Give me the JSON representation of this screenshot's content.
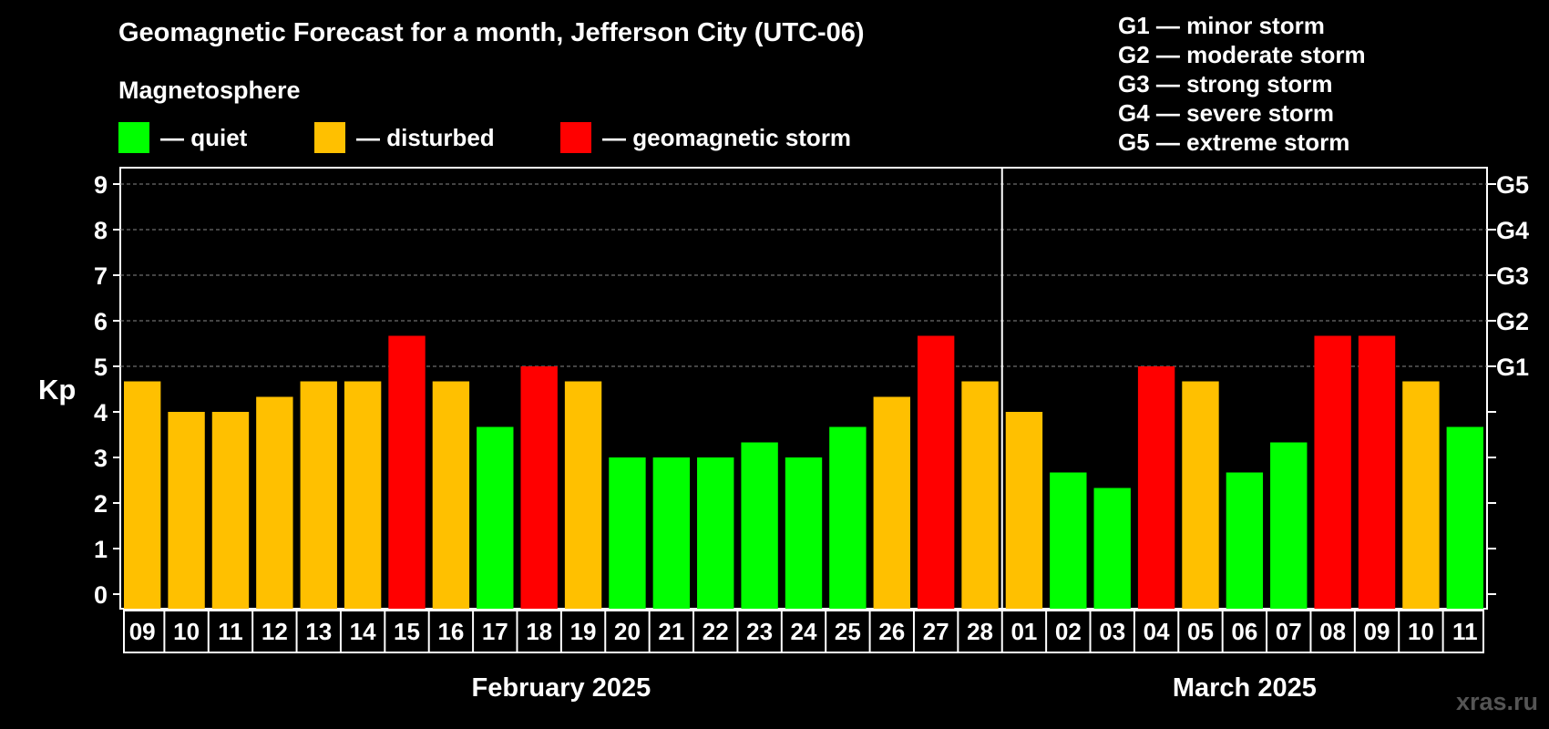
{
  "title": "Geomagnetic Forecast for a month, Jefferson City (UTC-06)",
  "subtitle": "Magnetosphere",
  "legend": [
    {
      "label": "— quiet",
      "color": "#00ff00"
    },
    {
      "label": "— disturbed",
      "color": "#ffc000"
    },
    {
      "label": "— geomagnetic storm",
      "color": "#ff0000"
    }
  ],
  "storm_levels": [
    "G1 — minor storm",
    "G2 — moderate storm",
    "G3 — strong storm",
    "G4 — severe storm",
    "G5 — extreme storm"
  ],
  "ylabel": "Kp",
  "watermark": "xras.ru",
  "chart_data": {
    "type": "bar",
    "ylim": [
      0,
      9
    ],
    "yticks": [
      "0",
      "1",
      "2",
      "3",
      "4",
      "5",
      "6",
      "7",
      "8",
      "9"
    ],
    "right_ticks": [
      {
        "value": 5,
        "label": "G1"
      },
      {
        "value": 6,
        "label": "G2"
      },
      {
        "value": 7,
        "label": "G3"
      },
      {
        "value": 8,
        "label": "G4"
      },
      {
        "value": 9,
        "label": "G5"
      }
    ],
    "grid": "horizontal dashed at 5, 6, 7, 8, 9",
    "groups": [
      {
        "label": "February 2025",
        "start": 0,
        "count": 20
      },
      {
        "label": "March 2025",
        "start": 20,
        "count": 11
      }
    ],
    "categories": [
      "09",
      "10",
      "11",
      "12",
      "13",
      "14",
      "15",
      "16",
      "17",
      "18",
      "19",
      "20",
      "21",
      "22",
      "23",
      "24",
      "25",
      "26",
      "27",
      "28",
      "01",
      "02",
      "03",
      "04",
      "05",
      "06",
      "07",
      "08",
      "09",
      "10",
      "11"
    ],
    "values": [
      4.67,
      4.0,
      4.0,
      4.33,
      4.67,
      4.67,
      5.67,
      4.67,
      3.67,
      5.0,
      4.67,
      3.0,
      3.0,
      3.0,
      3.33,
      3.0,
      3.67,
      4.33,
      5.67,
      4.67,
      4.0,
      2.67,
      2.33,
      5.0,
      4.67,
      2.67,
      3.33,
      5.67,
      5.67,
      4.67,
      3.67
    ],
    "status": [
      "disturbed",
      "disturbed",
      "disturbed",
      "disturbed",
      "disturbed",
      "disturbed",
      "storm",
      "disturbed",
      "quiet",
      "storm",
      "disturbed",
      "quiet",
      "quiet",
      "quiet",
      "quiet",
      "quiet",
      "quiet",
      "disturbed",
      "storm",
      "disturbed",
      "disturbed",
      "quiet",
      "quiet",
      "storm",
      "disturbed",
      "quiet",
      "quiet",
      "storm",
      "storm",
      "disturbed",
      "quiet"
    ],
    "status_colors": {
      "quiet": "#00ff00",
      "disturbed": "#ffc000",
      "storm": "#ff0000"
    }
  }
}
